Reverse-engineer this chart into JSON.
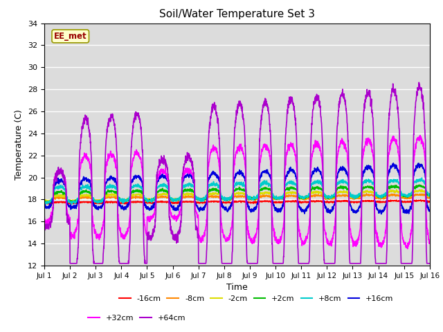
{
  "title": "Soil/Water Temperature Set 3",
  "xlabel": "Time",
  "ylabel": "Temperature (C)",
  "ylim": [
    12,
    34
  ],
  "xlim": [
    0,
    15
  ],
  "xtick_labels": [
    "Jul 1",
    "Jul 2",
    "Jul 3",
    "Jul 4",
    "Jul 5",
    "Jul 6",
    "Jul 7",
    "Jul 8",
    "Jul 9",
    "Jul 10",
    "Jul 11",
    "Jul 12",
    "Jul 13",
    "Jul 14",
    "Jul 15",
    "Jul 16"
  ],
  "ytick_values": [
    12,
    14,
    16,
    18,
    20,
    22,
    24,
    26,
    28,
    30,
    32,
    34
  ],
  "watermark": "EE_met",
  "bg_color": "#dcdcdc",
  "series": {
    "-16cm": {
      "color": "#ff0000",
      "lw": 1.2
    },
    "-8cm": {
      "color": "#ff8800",
      "lw": 1.2
    },
    "-2cm": {
      "color": "#dddd00",
      "lw": 1.2
    },
    "+2cm": {
      "color": "#00bb00",
      "lw": 1.2
    },
    "+8cm": {
      "color": "#00cccc",
      "lw": 1.2
    },
    "+16cm": {
      "color": "#0000dd",
      "lw": 1.2
    },
    "+32cm": {
      "color": "#ff00ff",
      "lw": 1.2
    },
    "+64cm": {
      "color": "#aa00cc",
      "lw": 1.2
    }
  },
  "legend_labels": [
    "-16cm",
    "-8cm",
    "-2cm",
    "+2cm",
    "+8cm",
    "+16cm",
    "+32cm",
    "+64cm"
  ]
}
